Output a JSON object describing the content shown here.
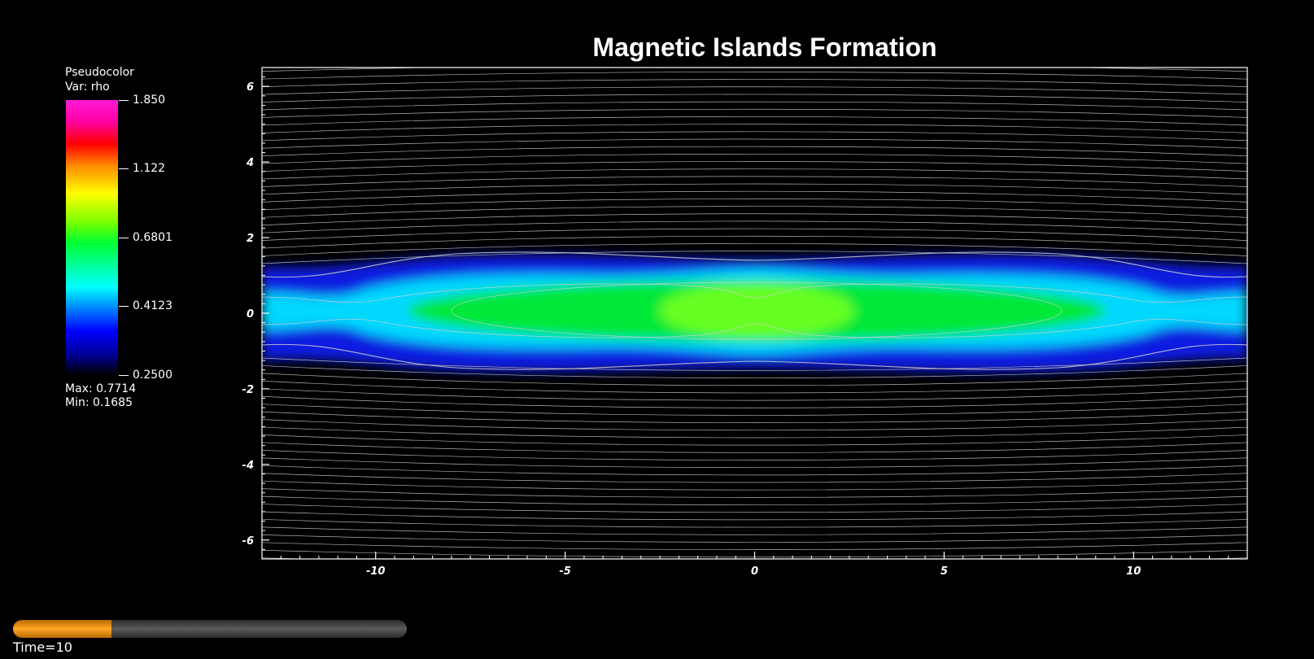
{
  "chart_data": {
    "type": "heatmap",
    "title": "Magnetic Islands Formation",
    "xlim": [
      -13,
      13
    ],
    "ylim": [
      -6.5,
      6.5
    ],
    "x_ticks": [
      -10,
      -5,
      0,
      5,
      10
    ],
    "x_tick_labels": [
      "-10",
      "-5",
      "0",
      "5",
      "10"
    ],
    "y_ticks": [
      6,
      4,
      2,
      0,
      -2,
      -4,
      -6
    ],
    "y_tick_labels": [
      "6",
      "4",
      "2",
      "0",
      "-2",
      "-4",
      "-6"
    ],
    "legend": {
      "plot_type": "Pseudocolor",
      "variable": "Var: rho",
      "colorbar_ticks": [
        "1.850",
        "1.122",
        "0.6801",
        "0.4123",
        "0.2500"
      ],
      "max_label": "Max:  0.7714",
      "min_label": "Min:  0.1685"
    },
    "colors": {
      "background": "#000000",
      "contour": "#d0d0d0",
      "progress": "#ffa726"
    }
  },
  "time_slider": {
    "label": "Time=10",
    "progress_fraction": 0.25
  }
}
